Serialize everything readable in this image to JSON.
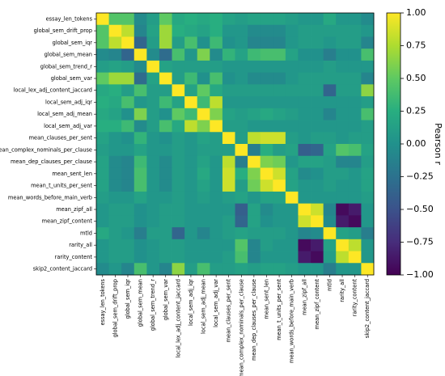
{
  "chart_data": {
    "type": "heatmap",
    "title": "",
    "xlabel": "",
    "ylabel": "",
    "labels": [
      "essay_len_tokens",
      "global_sem_drift_prop",
      "global_sem_iqr",
      "global_sem_mean",
      "global_sem_trend_r",
      "global_sem_var",
      "local_lex_adj_content_jaccard",
      "local_sem_adj_iqr",
      "local_sem_adj_mean",
      "local_sem_adj_var",
      "mean_clauses_per_sent",
      "mean_complex_nominals_per_clause",
      "mean_dep_clauses_per_clause",
      "mean_sent_len",
      "mean_t_units_per_sent",
      "mean_words_before_main_verb",
      "mean_zipf_all",
      "mean_zipf_content",
      "mtld",
      "rarity_all",
      "rarity_content",
      "skip2_content_jaccard"
    ],
    "matrix": [
      [
        1.0,
        0.45,
        0.45,
        -0.05,
        0.1,
        0.5,
        0.2,
        0.25,
        0.2,
        0.25,
        0.15,
        0.1,
        0.15,
        0.15,
        0.15,
        0.1,
        0.05,
        0.05,
        0.2,
        0.05,
        0.05,
        -0.05
      ],
      [
        0.45,
        1.0,
        0.8,
        -0.1,
        0.15,
        0.7,
        0.25,
        0.2,
        0.15,
        0.25,
        0.05,
        0.05,
        -0.05,
        -0.05,
        -0.05,
        0.05,
        0.1,
        0.1,
        0.1,
        0.1,
        0.1,
        0.05
      ],
      [
        0.45,
        0.8,
        1.0,
        -0.35,
        0.1,
        0.7,
        0.1,
        0.4,
        0.0,
        0.35,
        0.0,
        0.05,
        -0.1,
        -0.1,
        -0.1,
        0.05,
        0.1,
        0.1,
        0.05,
        0.1,
        0.1,
        -0.1
      ],
      [
        -0.05,
        -0.1,
        -0.35,
        1.0,
        -0.05,
        -0.3,
        0.4,
        0.05,
        0.6,
        -0.05,
        0.3,
        0.15,
        0.35,
        0.4,
        0.4,
        0.15,
        0.0,
        0.0,
        -0.15,
        0.0,
        0.0,
        0.4
      ],
      [
        0.1,
        0.15,
        0.1,
        -0.05,
        1.0,
        0.15,
        0.1,
        0.1,
        0.1,
        0.1,
        0.05,
        0.05,
        0.05,
        0.05,
        0.05,
        0.05,
        0.05,
        0.05,
        0.1,
        0.05,
        0.05,
        0.05
      ],
      [
        0.5,
        0.7,
        0.7,
        -0.3,
        0.15,
        1.0,
        0.1,
        0.35,
        0.0,
        0.4,
        0.0,
        0.05,
        -0.05,
        -0.05,
        -0.05,
        0.05,
        0.1,
        0.1,
        0.1,
        0.1,
        0.1,
        -0.1
      ],
      [
        0.2,
        0.25,
        0.1,
        0.4,
        0.1,
        0.1,
        1.0,
        0.15,
        0.5,
        0.2,
        0.1,
        0.1,
        0.1,
        0.1,
        0.1,
        0.1,
        0.1,
        0.1,
        -0.35,
        0.1,
        0.1,
        0.65
      ],
      [
        0.25,
        0.2,
        0.4,
        0.05,
        0.1,
        0.35,
        0.15,
        1.0,
        0.35,
        0.8,
        0.05,
        0.05,
        0.05,
        0.05,
        0.05,
        0.05,
        0.05,
        0.05,
        0.05,
        0.05,
        0.05,
        0.1
      ],
      [
        0.2,
        0.15,
        0.0,
        0.6,
        0.1,
        0.0,
        0.5,
        0.35,
        1.0,
        0.6,
        0.15,
        0.1,
        0.15,
        0.2,
        0.15,
        0.1,
        0.05,
        0.05,
        -0.1,
        0.05,
        0.05,
        0.4
      ],
      [
        0.25,
        0.25,
        0.35,
        -0.05,
        0.1,
        0.4,
        0.2,
        0.8,
        0.6,
        1.0,
        0.1,
        0.1,
        0.05,
        0.05,
        0.05,
        0.05,
        0.05,
        0.05,
        0.05,
        0.05,
        0.05,
        0.1
      ],
      [
        0.15,
        0.05,
        0.0,
        0.3,
        0.05,
        0.0,
        0.1,
        0.05,
        0.15,
        0.1,
        1.0,
        0.1,
        0.8,
        0.85,
        0.85,
        0.1,
        0.05,
        0.1,
        0.1,
        0.05,
        0.1,
        0.1
      ],
      [
        0.1,
        0.05,
        0.05,
        0.15,
        0.05,
        0.05,
        0.1,
        0.05,
        0.1,
        0.1,
        0.1,
        1.0,
        -0.15,
        0.25,
        0.1,
        0.15,
        -0.4,
        -0.35,
        0.15,
        0.45,
        0.4,
        0.15
      ],
      [
        0.15,
        -0.05,
        -0.1,
        0.35,
        0.05,
        -0.05,
        0.1,
        0.05,
        0.15,
        0.05,
        0.8,
        -0.15,
        1.0,
        0.6,
        0.55,
        0.05,
        0.15,
        0.15,
        0.1,
        -0.1,
        -0.1,
        0.1
      ],
      [
        0.15,
        -0.05,
        -0.1,
        0.4,
        0.05,
        -0.05,
        0.1,
        0.05,
        0.2,
        0.05,
        0.85,
        0.25,
        0.6,
        1.0,
        0.85,
        0.15,
        -0.05,
        0.0,
        0.1,
        0.1,
        0.05,
        0.15
      ],
      [
        0.15,
        -0.05,
        -0.1,
        0.4,
        0.05,
        -0.05,
        0.1,
        0.05,
        0.15,
        0.05,
        0.85,
        0.1,
        0.55,
        0.85,
        1.0,
        0.15,
        0.05,
        0.05,
        0.1,
        0.05,
        0.05,
        0.15
      ],
      [
        0.1,
        0.05,
        0.05,
        0.15,
        0.05,
        0.05,
        0.1,
        0.05,
        0.1,
        0.05,
        0.1,
        0.15,
        0.05,
        0.15,
        0.15,
        1.0,
        0.05,
        0.05,
        0.05,
        0.05,
        0.05,
        0.1
      ],
      [
        0.05,
        0.1,
        0.1,
        0.0,
        0.05,
        0.1,
        0.1,
        0.05,
        0.05,
        0.05,
        0.05,
        -0.4,
        0.15,
        -0.05,
        0.05,
        0.05,
        1.0,
        0.85,
        -0.1,
        -0.95,
        -0.85,
        0.05
      ],
      [
        0.05,
        0.1,
        0.1,
        0.0,
        0.05,
        0.1,
        0.1,
        0.05,
        0.05,
        0.05,
        0.1,
        -0.35,
        0.15,
        0.0,
        0.05,
        0.05,
        0.85,
        1.0,
        -0.05,
        -0.85,
        -0.95,
        0.05
      ],
      [
        0.2,
        0.1,
        0.05,
        -0.15,
        0.1,
        0.1,
        -0.35,
        0.05,
        -0.1,
        0.05,
        0.1,
        0.15,
        0.1,
        0.1,
        0.1,
        0.05,
        -0.1,
        -0.05,
        1.0,
        0.15,
        0.1,
        -0.15
      ],
      [
        0.05,
        0.1,
        0.1,
        0.0,
        0.05,
        0.1,
        0.1,
        0.05,
        0.05,
        0.05,
        0.05,
        0.45,
        -0.1,
        0.1,
        0.05,
        0.05,
        -0.95,
        -0.85,
        0.15,
        1.0,
        0.8,
        0.05
      ],
      [
        0.05,
        0.1,
        0.1,
        0.0,
        0.05,
        0.1,
        0.1,
        0.05,
        0.05,
        0.05,
        0.1,
        0.4,
        -0.1,
        0.05,
        0.05,
        0.05,
        -0.85,
        -0.95,
        0.1,
        0.8,
        1.0,
        0.05
      ],
      [
        -0.05,
        0.05,
        -0.1,
        0.4,
        0.05,
        -0.1,
        0.65,
        0.1,
        0.4,
        0.1,
        0.1,
        0.15,
        0.1,
        0.15,
        0.15,
        0.1,
        0.05,
        0.05,
        -0.15,
        0.05,
        0.05,
        1.0
      ]
    ],
    "colorbar": {
      "label": "Pearson r",
      "range": [
        -1.0,
        1.0
      ],
      "ticks": [
        "1.00",
        "0.75",
        "0.50",
        "0.25",
        "0.00",
        "−0.25",
        "−0.50",
        "−0.75",
        "−1.00"
      ],
      "tick_values": [
        1.0,
        0.75,
        0.5,
        0.25,
        0.0,
        -0.25,
        -0.5,
        -0.75,
        -1.0
      ],
      "colormap": "viridis"
    },
    "grid": false
  }
}
